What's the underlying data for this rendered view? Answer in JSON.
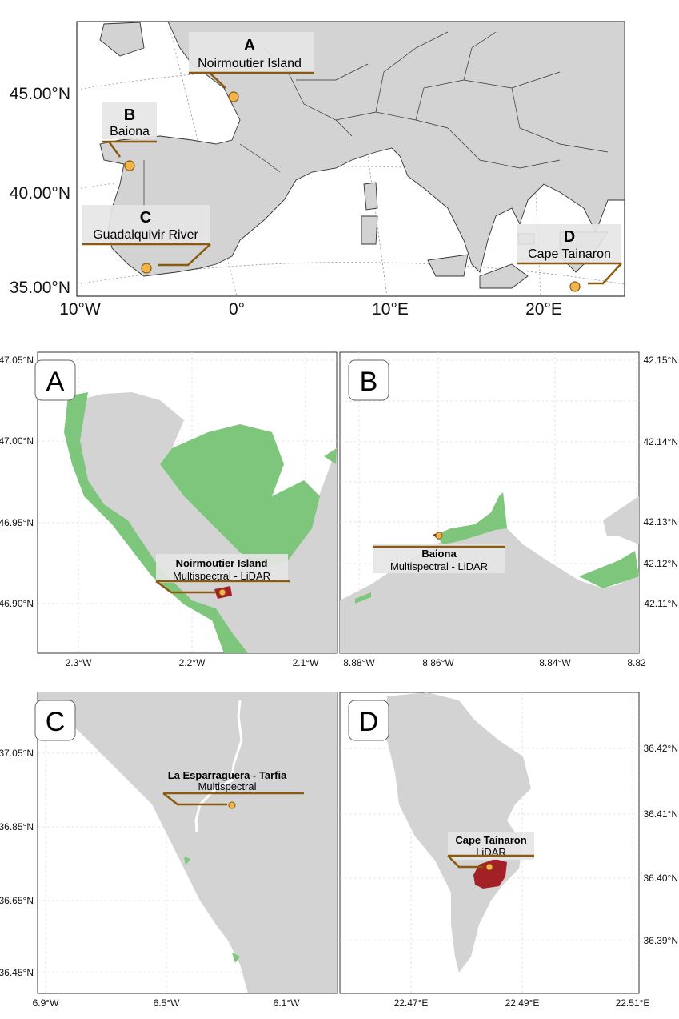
{
  "overview": {
    "lat_labels": [
      "45.00°N",
      "40.00°N",
      "35.00°N"
    ],
    "lon_labels": [
      "10°W",
      "0°",
      "10°E",
      "20°E"
    ],
    "sites": [
      {
        "letter": "A",
        "name": "Noirmoutier Island"
      },
      {
        "letter": "B",
        "name": "Baiona"
      },
      {
        "letter": "C",
        "name": "Guadalquivir River"
      },
      {
        "letter": "D",
        "name": "Cape Tainaron"
      }
    ]
  },
  "panels": {
    "A": {
      "letter": "A",
      "site_title": "Noirmoutier Island",
      "site_method": "Multispectral - LiDAR",
      "y_ticks": [
        "47.05°N",
        "47.00°N",
        "46.95°N",
        "46.90°N"
      ],
      "x_ticks": [
        "2.3°W",
        "2.2°W",
        "2.1°W"
      ]
    },
    "B": {
      "letter": "B",
      "site_title": "Baiona",
      "site_method": "Multispectral - LiDAR",
      "y_ticks": [
        "42.15°N",
        "42.14°N",
        "42.13°N",
        "42.12°N",
        "42.11°N"
      ],
      "x_ticks": [
        "8.88°W",
        "8.86°W",
        "8.84°W",
        "8.82"
      ]
    },
    "C": {
      "letter": "C",
      "site_title": "La Esparraguera - Tarfia",
      "site_method": "Multispectral",
      "y_ticks": [
        "37.05°N",
        "36.85°N",
        "36.65°N",
        "36.45°N"
      ],
      "x_ticks": [
        "6.9°W",
        "6.5°W",
        "6.1°W"
      ]
    },
    "D": {
      "letter": "D",
      "site_title": "Cape Tainaron",
      "site_method": "LiDAR",
      "y_ticks": [
        "36.42°N",
        "36.41°N",
        "36.40°N",
        "36.39°N"
      ],
      "x_ticks": [
        "22.47°E",
        "22.49°E",
        "22.51°E"
      ]
    }
  },
  "colors": {
    "land": "#d3d3d3",
    "sea": "#ffffff",
    "seagrass": "#7dc67c",
    "study_area": "#a32026",
    "site_marker": "#f2b54a",
    "leader_line": "#8a5a10",
    "label_box": "#e6e6e6",
    "grid": "#cfcfcf"
  }
}
